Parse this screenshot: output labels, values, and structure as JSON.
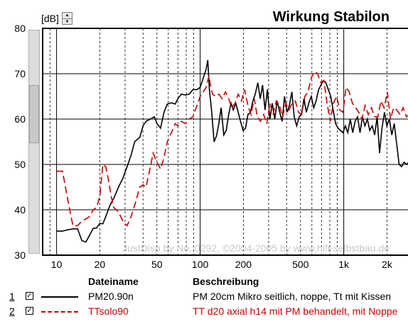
{
  "chart_data": {
    "type": "line",
    "title": "Wirkung Stabilon",
    "ylabel": "[dB]",
    "xscale": "log",
    "xlim": [
      8,
      3000
    ],
    "ylim": [
      30,
      80
    ],
    "grid": true,
    "x_ticks": [
      {
        "value": 10,
        "label": "10"
      },
      {
        "value": 20,
        "label": "20"
      },
      {
        "value": 50,
        "label": "50"
      },
      {
        "value": 100,
        "label": "100"
      },
      {
        "value": 200,
        "label": "200"
      },
      {
        "value": 500,
        "label": "500"
      },
      {
        "value": 1000,
        "label": "1k"
      },
      {
        "value": 2000,
        "label": "2k"
      }
    ],
    "y_ticks": [
      30,
      40,
      50,
      60,
      70,
      80
    ],
    "watermark": "JustDisp by No. 0292, ©2004-2005 by www.hifi-selbstbau.de",
    "series": [
      {
        "name": "PM20.90n",
        "color": "#000000",
        "dash": "solid",
        "points": [
          [
            10,
            35.3
          ],
          [
            11,
            35.3
          ],
          [
            12,
            35.6
          ],
          [
            13,
            35.8
          ],
          [
            14,
            35.8
          ],
          [
            15,
            33.2
          ],
          [
            16,
            32.9
          ],
          [
            17,
            34.4
          ],
          [
            18,
            35.9
          ],
          [
            19,
            36.0
          ],
          [
            20,
            37.0
          ],
          [
            21,
            36.9
          ],
          [
            22,
            38.5
          ],
          [
            23,
            40.2
          ],
          [
            24,
            41.5
          ],
          [
            25,
            42.5
          ],
          [
            27,
            45.0
          ],
          [
            29,
            47.0
          ],
          [
            31,
            49.5
          ],
          [
            33,
            52.0
          ],
          [
            35,
            55.0
          ],
          [
            38,
            56.0
          ],
          [
            40,
            58.5
          ],
          [
            42,
            59.5
          ],
          [
            45,
            60.0
          ],
          [
            48,
            60.5
          ],
          [
            50,
            59.0
          ],
          [
            53,
            58.0
          ],
          [
            56,
            61.5
          ],
          [
            59,
            63.3
          ],
          [
            63,
            63.6
          ],
          [
            67,
            63.3
          ],
          [
            70,
            64.5
          ],
          [
            74,
            65.5
          ],
          [
            79,
            65.3
          ],
          [
            84,
            65.5
          ],
          [
            89,
            66.5
          ],
          [
            95,
            66.5
          ],
          [
            100,
            67.0
          ],
          [
            105,
            69.0
          ],
          [
            110,
            71.0
          ],
          [
            113,
            73.0
          ],
          [
            116,
            66.5
          ],
          [
            120,
            62.0
          ],
          [
            125,
            55.0
          ],
          [
            130,
            56.3
          ],
          [
            135,
            59.0
          ],
          [
            140,
            62.5
          ],
          [
            146,
            56.5
          ],
          [
            152,
            57.5
          ],
          [
            158,
            61.0
          ],
          [
            164,
            63.5
          ],
          [
            170,
            62.0
          ],
          [
            177,
            63.5
          ],
          [
            184,
            61.5
          ],
          [
            191,
            59.5
          ],
          [
            199,
            57.5
          ],
          [
            207,
            58.0
          ],
          [
            215,
            61.0
          ],
          [
            224,
            61.5
          ],
          [
            233,
            64.0
          ],
          [
            242,
            65.5
          ],
          [
            252,
            68.0
          ],
          [
            262,
            64.5
          ],
          [
            272,
            67.5
          ],
          [
            283,
            62.0
          ],
          [
            294,
            66.5
          ],
          [
            306,
            60.0
          ],
          [
            318,
            63.5
          ],
          [
            331,
            60.0
          ],
          [
            344,
            64.0
          ],
          [
            358,
            61.5
          ],
          [
            372,
            59.5
          ],
          [
            387,
            65.0
          ],
          [
            402,
            61.5
          ],
          [
            418,
            63.0
          ],
          [
            435,
            66.0
          ],
          [
            452,
            60.5
          ],
          [
            470,
            58.5
          ],
          [
            489,
            60.5
          ],
          [
            508,
            61.0
          ],
          [
            528,
            64.5
          ],
          [
            549,
            61.5
          ],
          [
            571,
            63.5
          ],
          [
            594,
            65.0
          ],
          [
            618,
            62.5
          ],
          [
            642,
            64.0
          ],
          [
            668,
            66.5
          ],
          [
            694,
            67.5
          ],
          [
            722,
            68.5
          ],
          [
            751,
            68.0
          ],
          [
            781,
            66.5
          ],
          [
            812,
            65.0
          ],
          [
            844,
            62.0
          ],
          [
            878,
            59.0
          ],
          [
            913,
            58.0
          ],
          [
            949,
            57.5
          ],
          [
            987,
            57.0
          ],
          [
            1026,
            58.5
          ],
          [
            1067,
            57.0
          ],
          [
            1110,
            60.0
          ],
          [
            1154,
            57.0
          ],
          [
            1200,
            59.5
          ],
          [
            1248,
            60.5
          ],
          [
            1298,
            57.0
          ],
          [
            1350,
            60.5
          ],
          [
            1404,
            58.5
          ],
          [
            1460,
            60.0
          ],
          [
            1518,
            57.5
          ],
          [
            1579,
            58.5
          ],
          [
            1642,
            56.5
          ],
          [
            1708,
            60.5
          ],
          [
            1776,
            52.5
          ],
          [
            1847,
            58.0
          ],
          [
            1921,
            61.5
          ],
          [
            1998,
            58.5
          ],
          [
            2078,
            60.0
          ],
          [
            2161,
            56.5
          ],
          [
            2247,
            59.0
          ],
          [
            2337,
            54.5
          ],
          [
            2430,
            50.0
          ],
          [
            2527,
            49.5
          ],
          [
            2628,
            50.5
          ],
          [
            2733,
            50.0
          ],
          [
            2850,
            50.5
          ]
        ]
      },
      {
        "name": "TTsolo90",
        "color": "#cc0000",
        "dash": "10,5",
        "points": [
          [
            10,
            48.5
          ],
          [
            11,
            48.5
          ],
          [
            12,
            42.0
          ],
          [
            13,
            36.5
          ],
          [
            14,
            36.5
          ],
          [
            15,
            37.5
          ],
          [
            16,
            38.0
          ],
          [
            17,
            38.5
          ],
          [
            18,
            40.0
          ],
          [
            19,
            40.5
          ],
          [
            20,
            43.0
          ],
          [
            21,
            50.0
          ],
          [
            22,
            49.5
          ],
          [
            23,
            46.5
          ],
          [
            24,
            43.0
          ],
          [
            25,
            40.5
          ],
          [
            27,
            39.5
          ],
          [
            29,
            37.5
          ],
          [
            31,
            36.5
          ],
          [
            33,
            38.5
          ],
          [
            35,
            41.0
          ],
          [
            38,
            45.0
          ],
          [
            40,
            45.5
          ],
          [
            42,
            45.0
          ],
          [
            45,
            49.5
          ],
          [
            47,
            52.5
          ],
          [
            50,
            50.5
          ],
          [
            53,
            49.0
          ],
          [
            56,
            51.5
          ],
          [
            59,
            55.0
          ],
          [
            63,
            57.0
          ],
          [
            67,
            59.0
          ],
          [
            70,
            58.5
          ],
          [
            74,
            59.5
          ],
          [
            79,
            59.0
          ],
          [
            84,
            60.0
          ],
          [
            89,
            60.5
          ],
          [
            95,
            63.0
          ],
          [
            100,
            65.0
          ],
          [
            105,
            66.0
          ],
          [
            110,
            67.0
          ],
          [
            115,
            69.5
          ],
          [
            118,
            67.5
          ],
          [
            122,
            65.5
          ],
          [
            128,
            65.0
          ],
          [
            135,
            65.5
          ],
          [
            142,
            64.5
          ],
          [
            150,
            66.0
          ],
          [
            158,
            64.5
          ],
          [
            166,
            62.5
          ],
          [
            175,
            63.5
          ],
          [
            184,
            65.5
          ],
          [
            194,
            64.0
          ],
          [
            204,
            66.5
          ],
          [
            215,
            63.0
          ],
          [
            226,
            61.0
          ],
          [
            238,
            64.5
          ],
          [
            250,
            60.5
          ],
          [
            263,
            59.5
          ],
          [
            277,
            61.0
          ],
          [
            291,
            59.0
          ],
          [
            306,
            63.5
          ],
          [
            322,
            61.0
          ],
          [
            339,
            64.0
          ],
          [
            357,
            63.0
          ],
          [
            375,
            60.5
          ],
          [
            395,
            63.5
          ],
          [
            415,
            62.0
          ],
          [
            437,
            63.5
          ],
          [
            460,
            64.0
          ],
          [
            484,
            61.5
          ],
          [
            509,
            61.0
          ],
          [
            536,
            65.0
          ],
          [
            564,
            66.0
          ],
          [
            593,
            69.0
          ],
          [
            624,
            70.5
          ],
          [
            657,
            70.0
          ],
          [
            691,
            68.0
          ],
          [
            727,
            68.5
          ],
          [
            765,
            63.5
          ],
          [
            805,
            59.5
          ],
          [
            847,
            63.5
          ],
          [
            891,
            65.0
          ],
          [
            938,
            62.0
          ],
          [
            987,
            61.5
          ],
          [
            1038,
            67.0
          ],
          [
            1092,
            66.0
          ],
          [
            1149,
            63.5
          ],
          [
            1209,
            62.5
          ],
          [
            1272,
            61.5
          ],
          [
            1339,
            60.0
          ],
          [
            1409,
            63.0
          ],
          [
            1482,
            61.0
          ],
          [
            1559,
            62.5
          ],
          [
            1641,
            60.5
          ],
          [
            1726,
            60.5
          ],
          [
            1816,
            64.0
          ],
          [
            1911,
            62.5
          ],
          [
            2011,
            66.0
          ],
          [
            2116,
            60.0
          ],
          [
            2226,
            62.5
          ],
          [
            2342,
            62.0
          ],
          [
            2464,
            61.0
          ],
          [
            2593,
            62.5
          ],
          [
            2728,
            60.5
          ],
          [
            2850,
            61.0
          ]
        ]
      }
    ]
  },
  "ui": {
    "unit_label": "[dB]",
    "spin_up": "▲",
    "spin_down": "▼"
  },
  "legend": {
    "header_file": "Dateiname",
    "header_desc": "Beschreibung",
    "rows": [
      {
        "num": "1",
        "check": "✓",
        "file": "PM20.90n",
        "desc": "PM 20cm Mikro seitlich, noppe, Tt mit Kissen",
        "color": "#000000"
      },
      {
        "num": "2",
        "check": "✓",
        "file": "TTsolo90",
        "desc": "TT d20 axial h14 mit PM behandelt,  mit Noppe",
        "color": "#cc0000"
      }
    ]
  }
}
